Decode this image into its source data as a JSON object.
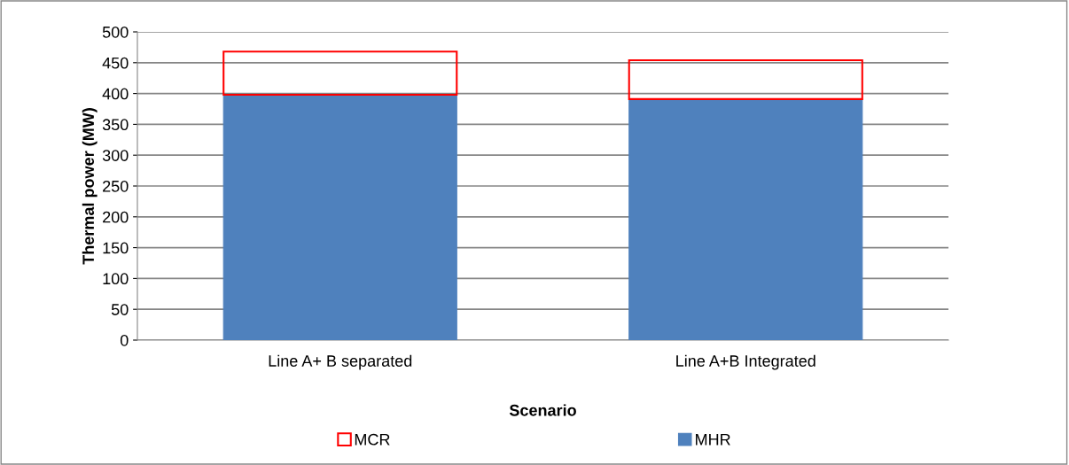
{
  "chart_data": {
    "type": "bar",
    "stacked": true,
    "xlabel": "Scenario",
    "ylabel": "Thermal power (MW)",
    "categories": [
      "Line A+ B separated",
      "Line A+B Integrated"
    ],
    "series": [
      {
        "name": "MHR",
        "color": "#4f81bd",
        "values": [
          398,
          391
        ]
      },
      {
        "name": "MCR",
        "color": "#ff0000",
        "values": [
          70,
          63
        ]
      }
    ],
    "ylim": [
      0,
      500
    ],
    "yticks": [
      0,
      50,
      100,
      150,
      200,
      250,
      300,
      350,
      400,
      450,
      500
    ],
    "grid": "y",
    "legend": "bottom"
  }
}
